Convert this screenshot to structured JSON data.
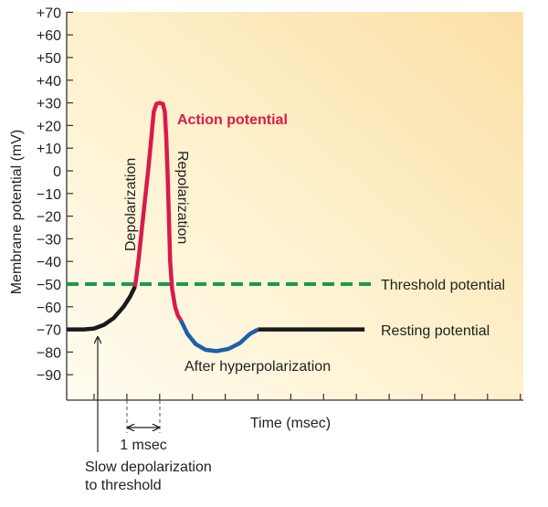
{
  "chart_data": {
    "type": "line",
    "title": "Action potential",
    "xlabel": "Time (msec)",
    "ylabel": "Membrane potential (mV)",
    "xlim": [
      -0.83,
      13.1
    ],
    "ylim": [
      -100,
      70
    ],
    "x_ticks": [
      0,
      1,
      2,
      3,
      4,
      5,
      6,
      7,
      8,
      9,
      10,
      11,
      12,
      13
    ],
    "y_ticks": [
      70,
      60,
      50,
      40,
      30,
      20,
      10,
      0,
      -10,
      -20,
      -30,
      -40,
      -50,
      -60,
      -70,
      -80,
      -90
    ],
    "y_tick_labels": [
      "+70",
      "+60",
      "+50",
      "+40",
      "+30",
      "+20",
      "+10",
      "0",
      "−10",
      "−20",
      "−30",
      "−40",
      "−50",
      "−60",
      "−70",
      "−80",
      "−90"
    ],
    "grid": false,
    "series": [
      {
        "name": "Slow depolarization",
        "color": "#1a1a1a",
        "points": [
          [
            -0.83,
            -70
          ],
          [
            -0.3,
            -70
          ],
          [
            0,
            -69.6
          ],
          [
            0.3,
            -68
          ],
          [
            0.6,
            -65
          ],
          [
            0.9,
            -60
          ],
          [
            1.1,
            -55.5
          ],
          [
            1.25,
            -51
          ]
        ]
      },
      {
        "name": "Action potential",
        "color": "#d91a4a",
        "points": [
          [
            1.25,
            -51
          ],
          [
            1.35,
            -40
          ],
          [
            1.5,
            -20
          ],
          [
            1.65,
            0
          ],
          [
            1.75,
            15
          ],
          [
            1.82,
            26
          ],
          [
            1.9,
            29.5
          ],
          [
            2.0,
            30
          ],
          [
            2.1,
            29.5
          ],
          [
            2.16,
            26
          ],
          [
            2.2,
            15
          ],
          [
            2.24,
            0
          ],
          [
            2.28,
            -20
          ],
          [
            2.32,
            -40
          ],
          [
            2.38,
            -52
          ],
          [
            2.47,
            -60
          ],
          [
            2.56,
            -64
          ],
          [
            2.65,
            -66
          ]
        ]
      },
      {
        "name": "After hyperpolarization",
        "color": "#1f5fa8",
        "points": [
          [
            2.65,
            -66
          ],
          [
            2.85,
            -72
          ],
          [
            3.1,
            -76.5
          ],
          [
            3.4,
            -79
          ],
          [
            3.73,
            -79.6
          ],
          [
            4.1,
            -78.6
          ],
          [
            4.45,
            -76
          ],
          [
            4.75,
            -72
          ],
          [
            5.0,
            -70
          ]
        ]
      },
      {
        "name": "Resting potential",
        "color": "#1a1a1a",
        "points": [
          [
            5.0,
            -70
          ],
          [
            8.25,
            -70
          ]
        ]
      }
    ],
    "threshold": {
      "value": -50,
      "x_end": 8.55,
      "color": "#1a9a4a",
      "label": "Threshold potential"
    },
    "annotations": {
      "action_potential": "Action potential",
      "depolarization": "Depolarization",
      "repolarization": "Repolarization",
      "resting_potential": "Resting potential",
      "after_hyperpolarization": "After hyperpolarization",
      "one_msec": "1 msec",
      "slow_depolarization_line1": "Slow depolarization",
      "slow_depolarization_line2": "to threshold"
    },
    "colors": {
      "bg_light": "#fefaec",
      "bg_warm": "#fbe2ab"
    }
  }
}
